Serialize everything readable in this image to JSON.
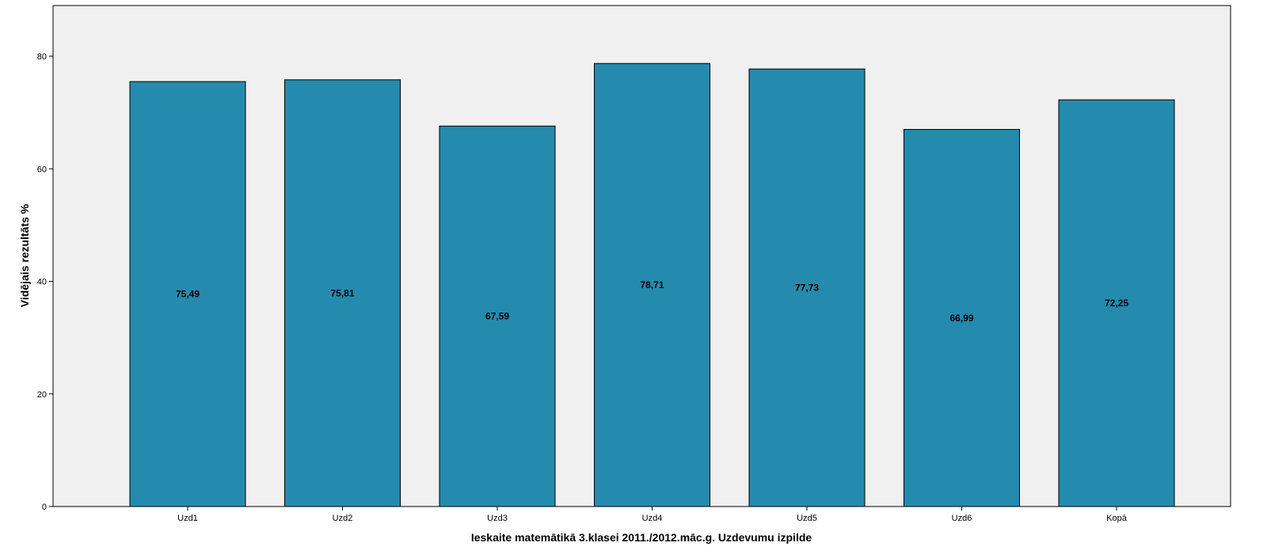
{
  "chart_data": {
    "type": "bar",
    "title": "",
    "xlabel": "Ieskaite matemātikā 3.klasei 2011./2012.māc.g. Uzdevumu izpilde",
    "ylabel": "Vidējais rezultāts %",
    "categories": [
      "Uzd1",
      "Uzd2",
      "Uzd3",
      "Uzd4",
      "Uzd5",
      "Uzd6",
      "Kopā"
    ],
    "values": [
      75.49,
      75.81,
      67.59,
      78.71,
      77.73,
      66.99,
      72.25
    ],
    "value_labels": [
      "75,49",
      "75,81",
      "67,59",
      "78,71",
      "77,73",
      "66,99",
      "72,25"
    ],
    "ylim": [
      0,
      89
    ],
    "yticks": [
      0,
      20,
      40,
      60,
      80
    ],
    "grid": false,
    "legend": "none",
    "bar_color": "#248BAE",
    "plot_background": "#F0F0F0"
  }
}
